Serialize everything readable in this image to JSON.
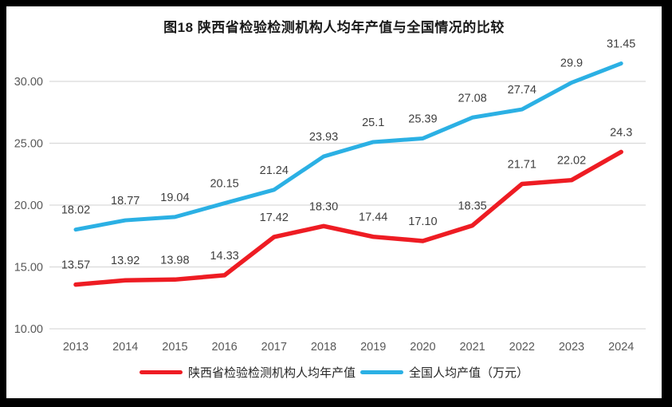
{
  "chart_data": {
    "type": "line",
    "title": "图18 陕西省检验检测机构人均年产值与全国情况的比较",
    "categories": [
      "2013",
      "2014",
      "2015",
      "2016",
      "2017",
      "2018",
      "2019",
      "2020",
      "2021",
      "2022",
      "2023",
      "2024"
    ],
    "series": [
      {
        "name": "陕西省检验检测机构人均年产值",
        "color": "#ee1c23",
        "stroke_width": 5.5,
        "values": [
          13.57,
          13.92,
          13.98,
          14.33,
          17.42,
          18.3,
          17.44,
          17.1,
          18.35,
          21.71,
          22.02,
          24.3
        ],
        "labels": [
          "13.57",
          "13.92",
          "13.98",
          "14.33",
          "17.42",
          "18.30",
          "17.44",
          "17.10",
          "18.35",
          "21.71",
          "22.02",
          "24.3"
        ]
      },
      {
        "name": "全国人均产值（万元）",
        "color": "#2bb0e4",
        "stroke_width": 5,
        "values": [
          18.02,
          18.77,
          19.04,
          20.15,
          21.24,
          23.93,
          25.1,
          25.39,
          27.08,
          27.74,
          29.9,
          31.45
        ],
        "labels": [
          "18.02",
          "18.77",
          "19.04",
          "20.15",
          "21.24",
          "23.93",
          "25.1",
          "25.39",
          "27.08",
          "27.74",
          "29.9",
          "31.45"
        ]
      }
    ],
    "xlabel": "",
    "ylabel": "",
    "ylim": [
      10,
      32.5
    ],
    "yticks": [
      10,
      15,
      20,
      25,
      30
    ],
    "ytick_labels": [
      "10.00",
      "15.00",
      "20.00",
      "25.00",
      "30.00"
    ],
    "grid": "horizontal",
    "legend_position": "bottom",
    "colors": {
      "gridline": "#d9d9d9",
      "axis_label": "#595959",
      "data_label": "#3f3f3f",
      "background": "#ffffff",
      "frame": "#000000"
    }
  }
}
